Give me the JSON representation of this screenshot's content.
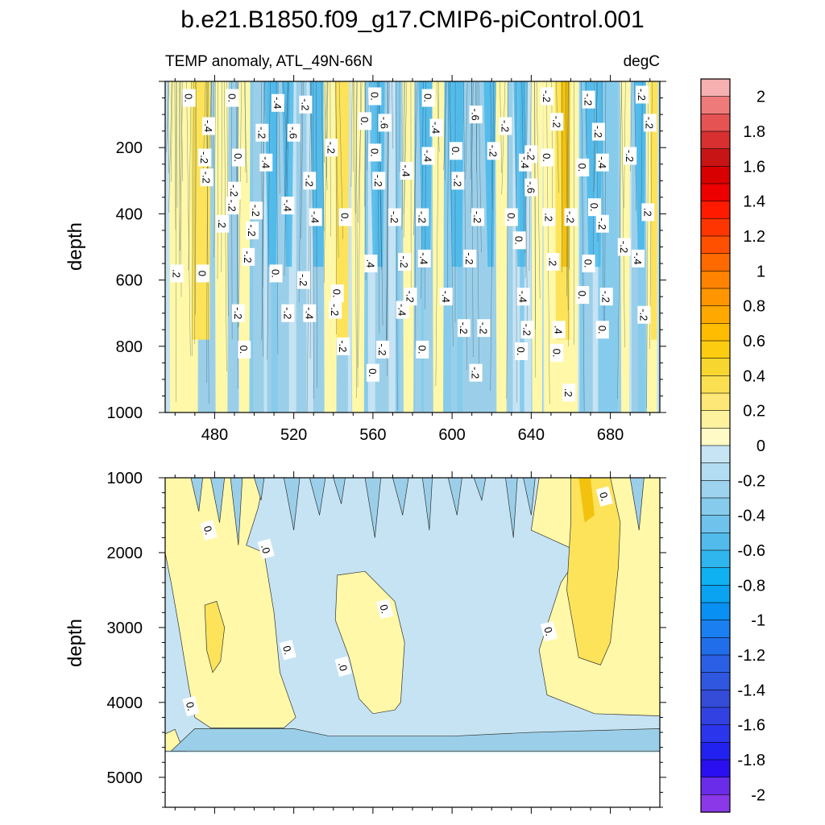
{
  "title": "b.e21.B1850.f09_g17.CMIP6-piControl.001",
  "subtitle_left": "TEMP anomaly, ATL_49N-66N",
  "subtitle_right": "degC",
  "colors": {
    "positive_light": "#fff8a8",
    "positive_mid": "#fde35a",
    "positive_strong": "#f3c20f",
    "negative_light": "#c5e3f3",
    "negative_mid": "#9bcfe9",
    "negative_strong": "#3eb4ea"
  },
  "chart_data": [
    {
      "type": "heatmap",
      "name": "upper",
      "variable": "TEMP anomaly",
      "units": "degC",
      "xlabel": "",
      "ylabel": "depth",
      "xlim": [
        455,
        705
      ],
      "ylim": [
        1000,
        0
      ],
      "x_ticks": [
        480,
        520,
        560,
        600,
        640,
        680
      ],
      "y_ticks": [
        200,
        400,
        600,
        800,
        1000
      ],
      "contour_labels": [
        {
          "x": 467,
          "y": 50,
          "text": "0."
        },
        {
          "x": 489,
          "y": 50,
          "text": "0."
        },
        {
          "x": 512,
          "y": 65,
          "text": "-.4"
        },
        {
          "x": 526,
          "y": 70,
          "text": "-.2"
        },
        {
          "x": 561,
          "y": 45,
          "text": "0."
        },
        {
          "x": 588,
          "y": 50,
          "text": "0."
        },
        {
          "x": 556,
          "y": 120,
          "text": "0."
        },
        {
          "x": 566,
          "y": 125,
          "text": "-.6"
        },
        {
          "x": 592,
          "y": 140,
          "text": "-.4"
        },
        {
          "x": 612,
          "y": 100,
          "text": "-.6"
        },
        {
          "x": 627,
          "y": 135,
          "text": "-.2"
        },
        {
          "x": 648,
          "y": 45,
          "text": "-.2"
        },
        {
          "x": 669,
          "y": 55,
          "text": "-.2"
        },
        {
          "x": 696,
          "y": 40,
          "text": "-.2"
        },
        {
          "x": 700,
          "y": 125,
          "text": "-.2"
        },
        {
          "x": 653,
          "y": 122,
          "text": "-.2"
        },
        {
          "x": 674,
          "y": 152,
          "text": "-.2"
        },
        {
          "x": 477,
          "y": 135,
          "text": "-.4"
        },
        {
          "x": 504,
          "y": 155,
          "text": "-.2"
        },
        {
          "x": 520,
          "y": 155,
          "text": "-.6"
        },
        {
          "x": 475,
          "y": 230,
          "text": "-.2"
        },
        {
          "x": 492,
          "y": 230,
          "text": "0."
        },
        {
          "x": 506,
          "y": 245,
          "text": "-.4"
        },
        {
          "x": 476,
          "y": 290,
          "text": "-.2"
        },
        {
          "x": 539,
          "y": 200,
          "text": "-.2"
        },
        {
          "x": 561,
          "y": 215,
          "text": "0."
        },
        {
          "x": 588,
          "y": 225,
          "text": "-.4"
        },
        {
          "x": 602,
          "y": 210,
          "text": "0."
        },
        {
          "x": 621,
          "y": 210,
          "text": "-.2"
        },
        {
          "x": 637,
          "y": 245,
          "text": "-.4"
        },
        {
          "x": 640,
          "y": 220,
          "text": "-.2"
        },
        {
          "x": 648,
          "y": 230,
          "text": "0."
        },
        {
          "x": 666,
          "y": 260,
          "text": "0."
        },
        {
          "x": 676,
          "y": 245,
          "text": "-.4"
        },
        {
          "x": 690,
          "y": 225,
          "text": "-.2"
        },
        {
          "x": 528,
          "y": 300,
          "text": "-.2"
        },
        {
          "x": 563,
          "y": 300,
          "text": "-.2"
        },
        {
          "x": 577,
          "y": 270,
          "text": "-.4"
        },
        {
          "x": 603,
          "y": 300,
          "text": "-.2"
        },
        {
          "x": 640,
          "y": 320,
          "text": "-.6"
        },
        {
          "x": 490,
          "y": 330,
          "text": "-.2"
        },
        {
          "x": 489,
          "y": 375,
          "text": "-.2"
        },
        {
          "x": 501,
          "y": 390,
          "text": "-.2"
        },
        {
          "x": 517,
          "y": 375,
          "text": "-.4"
        },
        {
          "x": 531,
          "y": 410,
          "text": "-.4"
        },
        {
          "x": 546,
          "y": 410,
          "text": "0."
        },
        {
          "x": 571,
          "y": 410,
          "text": "-.2"
        },
        {
          "x": 585,
          "y": 410,
          "text": "-.2"
        },
        {
          "x": 613,
          "y": 410,
          "text": "-.2"
        },
        {
          "x": 630,
          "y": 410,
          "text": "0."
        },
        {
          "x": 660,
          "y": 410,
          "text": "-.2"
        },
        {
          "x": 672,
          "y": 380,
          "text": "0."
        },
        {
          "x": 699,
          "y": 395,
          "text": ".2"
        },
        {
          "x": 649,
          "y": 410,
          "text": ".2"
        },
        {
          "x": 484,
          "y": 430,
          "text": ".2"
        },
        {
          "x": 499,
          "y": 450,
          "text": "-.2"
        },
        {
          "x": 676,
          "y": 430,
          "text": "-.2"
        },
        {
          "x": 634,
          "y": 480,
          "text": "0."
        },
        {
          "x": 687,
          "y": 500,
          "text": "-.2"
        },
        {
          "x": 497,
          "y": 530,
          "text": "-.2"
        },
        {
          "x": 559,
          "y": 550,
          "text": ".4"
        },
        {
          "x": 576,
          "y": 545,
          "text": "-.2"
        },
        {
          "x": 586,
          "y": 535,
          "text": "-.4"
        },
        {
          "x": 609,
          "y": 535,
          "text": "-.2"
        },
        {
          "x": 651,
          "y": 545,
          "text": ".2"
        },
        {
          "x": 669,
          "y": 550,
          "text": "0."
        },
        {
          "x": 694,
          "y": 535,
          "text": "-.4"
        },
        {
          "x": 461,
          "y": 580,
          "text": ".2"
        },
        {
          "x": 474,
          "y": 580,
          "text": "0"
        },
        {
          "x": 511,
          "y": 580,
          "text": "0."
        },
        {
          "x": 525,
          "y": 600,
          "text": "-.2"
        },
        {
          "x": 542,
          "y": 640,
          "text": "0."
        },
        {
          "x": 579,
          "y": 650,
          "text": "-.2"
        },
        {
          "x": 597,
          "y": 650,
          "text": "-.4"
        },
        {
          "x": 636,
          "y": 650,
          "text": "-.4"
        },
        {
          "x": 666,
          "y": 645,
          "text": "0."
        },
        {
          "x": 678,
          "y": 650,
          "text": "-.2"
        },
        {
          "x": 575,
          "y": 690,
          "text": "-.4"
        },
        {
          "x": 492,
          "y": 700,
          "text": "-.2"
        },
        {
          "x": 517,
          "y": 700,
          "text": "-.2"
        },
        {
          "x": 528,
          "y": 700,
          "text": "-.4"
        },
        {
          "x": 541,
          "y": 690,
          "text": "-.2"
        },
        {
          "x": 697,
          "y": 705,
          "text": "-.2"
        },
        {
          "x": 606,
          "y": 745,
          "text": "-.2"
        },
        {
          "x": 616,
          "y": 745,
          "text": "-.2"
        },
        {
          "x": 638,
          "y": 750,
          "text": "-.2"
        },
        {
          "x": 654,
          "y": 750,
          "text": ".4"
        },
        {
          "x": 676,
          "y": 750,
          "text": "0."
        },
        {
          "x": 653,
          "y": 820,
          "text": "0."
        },
        {
          "x": 545,
          "y": 800,
          "text": "-.2"
        },
        {
          "x": 565,
          "y": 810,
          "text": "-.2"
        },
        {
          "x": 585,
          "y": 810,
          "text": "0."
        },
        {
          "x": 495,
          "y": 810,
          "text": "0."
        },
        {
          "x": 635,
          "y": 815,
          "text": "0."
        },
        {
          "x": 560,
          "y": 880,
          "text": "0."
        },
        {
          "x": 612,
          "y": 880,
          "text": "-.2"
        },
        {
          "x": 659,
          "y": 940,
          "text": ".2"
        }
      ]
    },
    {
      "type": "heatmap",
      "name": "lower",
      "variable": "TEMP anomaly",
      "units": "degC",
      "xlabel": "",
      "ylabel": "depth",
      "xlim": [
        455,
        705
      ],
      "ylim": [
        5400,
        1000
      ],
      "x_ticks": [],
      "y_ticks": [
        1000,
        2000,
        3000,
        4000,
        5000
      ],
      "bottom_depth": 4650,
      "contour_labels": [
        {
          "x": 677,
          "y": 1250,
          "text": "0."
        },
        {
          "x": 477,
          "y": 1700,
          "text": "0."
        },
        {
          "x": 506,
          "y": 1950,
          "text": ".0"
        },
        {
          "x": 566,
          "y": 2750,
          "text": "0."
        },
        {
          "x": 649,
          "y": 3050,
          "text": "0."
        },
        {
          "x": 517,
          "y": 3300,
          "text": "0."
        },
        {
          "x": 545,
          "y": 3520,
          "text": ".0"
        },
        {
          "x": 468,
          "y": 4050,
          "text": "0."
        }
      ]
    }
  ],
  "colorbar": {
    "levels": [
      2,
      1.8,
      1.6,
      1.4,
      1.2,
      1,
      0.8,
      0.6,
      0.4,
      0.2,
      0,
      -0.2,
      -0.4,
      -0.6,
      -0.8,
      -1,
      -1.2,
      -1.4,
      -1.6,
      -1.8,
      -2
    ],
    "labels": [
      "2",
      "1.8",
      "1.6",
      "1.4",
      "1.2",
      "1",
      "0.8",
      "0.6",
      "0.4",
      "0.2",
      "0",
      "-0.2",
      "-0.4",
      "-0.6",
      "-0.8",
      "-1",
      "-1.2",
      "-1.4",
      "-1.6",
      "-1.8",
      "-2"
    ],
    "colors": [
      "#f6b0b0",
      "#ef7a7a",
      "#e65353",
      "#d83030",
      "#c81414",
      "#d80000",
      "#ee0000",
      "#ff1a00",
      "#ff3500",
      "#ff5000",
      "#ff6a00",
      "#ff8200",
      "#ff9500",
      "#ffa800",
      "#ffbc00",
      "#fccc10",
      "#f8d630",
      "#fae050",
      "#fde877",
      "#fff29e",
      "#fffac6",
      "#c6e4f4",
      "#b2dcf1",
      "#9dd3ee",
      "#86cbec",
      "#6ec2ec",
      "#52bbec",
      "#2fb6ee",
      "#0fb1f0",
      "#0aa3f1",
      "#0890f2",
      "#1a7ff0",
      "#206ee9",
      "#2b5fe6",
      "#3057e0",
      "#344cd8",
      "#3242e2",
      "#2b35ec",
      "#2222f0",
      "#2a10f0",
      "#6a2ce8",
      "#8a38e8"
    ]
  }
}
